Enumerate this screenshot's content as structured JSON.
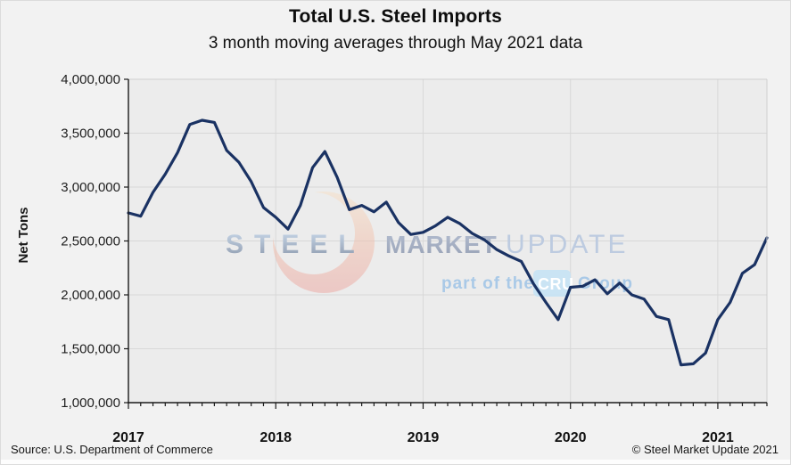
{
  "footer": {
    "source": "Source: U.S. Department of Commerce",
    "copyright": "© Steel Market Update 2021"
  },
  "watermark": {
    "steel": "STEEL",
    "market": "MARKET",
    "update": "UPDATE",
    "part_of_the": "part of the",
    "cru": "CRU",
    "group": "Group"
  },
  "colors": {
    "background": "#f2f2f2",
    "plot_background": "#ececec",
    "gridline": "#d8d8d8",
    "frame": "#cfcfcf",
    "axis": "#1a1a1a",
    "line": "#1a3263",
    "watermark_crescent_top": "#f7e3c9",
    "watermark_crescent_bottom": "#eba39e",
    "watermark_text": "#9fadc2",
    "cru_badge": "#c6e3f5"
  },
  "chart_data": {
    "type": "line",
    "title": "Total U.S. Steel Imports",
    "subtitle": "3 month moving averages through May 2021 data",
    "xlabel": "",
    "ylabel": "Net Tons",
    "ylim": [
      1000000,
      4000000
    ],
    "grid": true,
    "legend": false,
    "x_tick_labels": [
      "2017",
      "2018",
      "2019",
      "2020",
      "2021"
    ],
    "x_tick_month_indices": [
      0,
      12,
      24,
      36,
      48
    ],
    "y_tick_values": [
      1000000,
      1500000,
      2000000,
      2500000,
      3000000,
      3500000,
      4000000
    ],
    "y_tick_labels": [
      "1,000,000",
      "1,500,000",
      "2,000,000",
      "2,500,000",
      "3,000,000",
      "3,500,000",
      "4,000,000"
    ],
    "x": [
      "2017-01",
      "2017-02",
      "2017-03",
      "2017-04",
      "2017-05",
      "2017-06",
      "2017-07",
      "2017-08",
      "2017-09",
      "2017-10",
      "2017-11",
      "2017-12",
      "2018-01",
      "2018-02",
      "2018-03",
      "2018-04",
      "2018-05",
      "2018-06",
      "2018-07",
      "2018-08",
      "2018-09",
      "2018-10",
      "2018-11",
      "2018-12",
      "2019-01",
      "2019-02",
      "2019-03",
      "2019-04",
      "2019-05",
      "2019-06",
      "2019-07",
      "2019-08",
      "2019-09",
      "2019-10",
      "2019-11",
      "2019-12",
      "2020-01",
      "2020-02",
      "2020-03",
      "2020-04",
      "2020-05",
      "2020-06",
      "2020-07",
      "2020-08",
      "2020-09",
      "2020-10",
      "2020-11",
      "2020-12",
      "2021-01",
      "2021-02",
      "2021-03",
      "2021-04",
      "2021-05"
    ],
    "series": [
      {
        "name": "Total U.S. steel imports, 3-month moving average (net tons)",
        "values": [
          2760000,
          2730000,
          2950000,
          3120000,
          3320000,
          3580000,
          3620000,
          3600000,
          3340000,
          3230000,
          3050000,
          2810000,
          2720000,
          2610000,
          2830000,
          3180000,
          3330000,
          3090000,
          2790000,
          2830000,
          2770000,
          2860000,
          2670000,
          2560000,
          2580000,
          2640000,
          2720000,
          2660000,
          2570000,
          2510000,
          2420000,
          2360000,
          2310000,
          2100000,
          1930000,
          1770000,
          2070000,
          2080000,
          2140000,
          2010000,
          2110000,
          2000000,
          1960000,
          1800000,
          1770000,
          1350000,
          1360000,
          1460000,
          1770000,
          1930000,
          2200000,
          2280000,
          2530000
        ]
      }
    ]
  }
}
